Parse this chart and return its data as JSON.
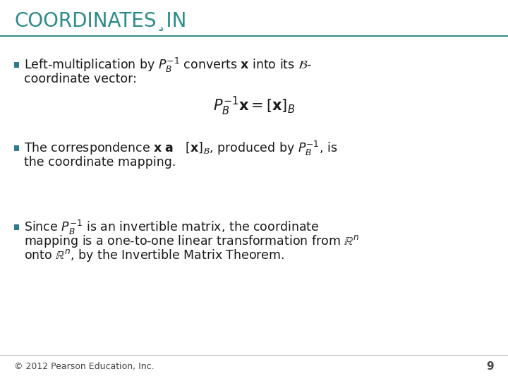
{
  "bg_color": "#ffffff",
  "title_text": "COORDINATES¸IN",
  "title_color": "#2E8B8B",
  "title_bar_color": "#2E8B8B",
  "bullet_color": "#2E7B8C",
  "text_color": "#1a1a1a",
  "footer_text": "© 2012 Pearson Education, Inc.",
  "page_number": "9",
  "title_fontsize": 20,
  "text_fontsize": 12.5,
  "formula1_fontsize": 15,
  "figwidth": 7.2,
  "figheight": 5.4,
  "dpi": 100
}
